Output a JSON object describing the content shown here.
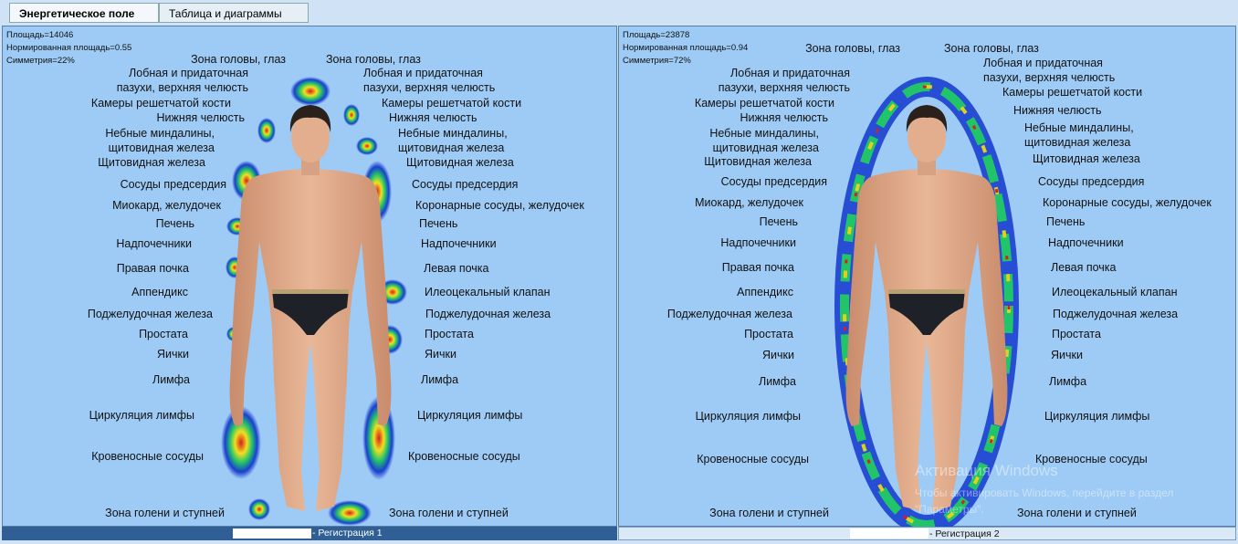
{
  "tabs": [
    "Энергетическое поле",
    "Таблица и диаграммы"
  ],
  "panels": [
    {
      "stats": [
        "Площадь=14046",
        "Нормированная площадь=0.55",
        "Симметрия=22%"
      ],
      "left_labels": [
        "Зона головы, глаз",
        "Лобная и придаточная\nпазухи, верхняя челюсть",
        "Камеры решетчатой кости",
        "Нижняя челюсть",
        "Небные миндалины,\nщитовидная железа",
        "Щитовидная железа",
        "Сосуды предсердия",
        "Миокард, желудочек",
        "Печень",
        "Надпочечники",
        "Правая почка",
        "Аппендикс",
        "Поджелудочная железа",
        "Простата",
        "Яички",
        "Лимфа",
        "Циркуляция лимфы",
        "Кровеносные сосуды",
        "Зона голени и ступней"
      ],
      "right_labels": [
        "Зона головы, глаз",
        "Лобная и придаточная\nпазухи, верхняя челюсть",
        "Камеры решетчатой кости",
        "Нижняя челюсть",
        "Небные миндалины,\nщитовидная железа",
        "Щитовидная железа",
        "Сосуды предсердия",
        "Коронарные сосуды, желудочек",
        "Печень",
        "Надпочечники",
        "Левая почка",
        "Илеоцекальный клапан",
        "Поджелудочная железа",
        "Простата",
        "Яички",
        "Лимфа",
        "Циркуляция лимфы",
        "Кровеносные сосуды",
        "Зона голени и ступней"
      ],
      "footer": "- Регистрация 1"
    },
    {
      "stats": [
        "Площадь=23878",
        "Нормированная площадь=0.94",
        "Симметрия=72%"
      ],
      "left_labels": [
        "Зона головы, глаз",
        "Лобная и придаточная\nпазухи, верхняя челюсть",
        "Камеры решетчатой кости",
        "Нижняя челюсть",
        "Небные миндалины,\nщитовидная железа",
        "Щитовидная железа",
        "Сосуды предсердия",
        "Миокард, желудочек",
        "Печень",
        "Надпочечники",
        "Правая почка",
        "Аппендикс",
        "Поджелудочная железа",
        "Простата",
        "Яички",
        "Лимфа",
        "Циркуляция лимфы",
        "Кровеносные сосуды",
        "Зона голени и ступней"
      ],
      "right_labels": [
        "Зона головы, глаз",
        "Лобная и придаточная\nпазухи, верхняя челюсть",
        "Камеры решетчатой кости",
        "Нижняя челюсть",
        "Небные миндалины,\nщитовидная железа",
        "Щитовидная железа",
        "Сосуды предсердия",
        "Коронарные сосуды, желудочек",
        "Печень",
        "Надпочечники",
        "Левая почка",
        "Илеоцекальный клапан",
        "Поджелудочная железа",
        "Простата",
        "Яички",
        "Лимфа",
        "Циркуляция лимфы",
        "Кровеносные сосуды",
        "Зона голени и ступней"
      ],
      "footer": "- Регистрация 2"
    }
  ],
  "watermark": {
    "title": "Активация Windows",
    "text": "Чтобы активировать Windows, перейдите в раздел \"Параметры\"."
  }
}
